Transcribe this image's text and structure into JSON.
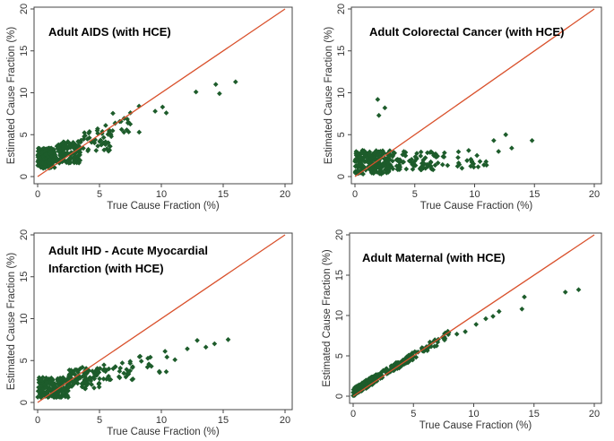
{
  "colors": {
    "point": "#1d5c2b",
    "identity_line": "#d9512c",
    "frame": "#444444"
  },
  "chart_data": [
    {
      "type": "scatter",
      "title_lines": [
        "Adult AIDS (with HCE)"
      ],
      "xlabel": "True Cause Fraction (%)",
      "ylabel": "Estimated Cause Fraction (%)",
      "xlim": [
        0,
        20
      ],
      "ylim": [
        0,
        20
      ],
      "xticks": [
        "0",
        "5",
        "10",
        "15",
        "20"
      ],
      "yticks": [
        "0",
        "5",
        "10",
        "15",
        "20"
      ],
      "reference_line": "y = x",
      "points": {
        "clusters": [
          {
            "x": [
              0,
              1.4
            ],
            "y": [
              1.0,
              3.4
            ],
            "n": 190
          },
          {
            "x": [
              1.4,
              3.5
            ],
            "y": [
              1.6,
              4.2
            ],
            "n": 120
          },
          {
            "x": [
              3.5,
              6.0
            ],
            "y": [
              3.0,
              5.8
            ],
            "n": 45
          },
          {
            "x": [
              6.0,
              8.5
            ],
            "y": [
              4.8,
              7.8
            ],
            "n": 16
          }
        ],
        "extra": [
          [
            9.5,
            7.8
          ],
          [
            10.1,
            8.3
          ],
          [
            10.4,
            7.6
          ],
          [
            12.8,
            10.1
          ],
          [
            14.4,
            11.0
          ],
          [
            14.7,
            9.9
          ],
          [
            16.0,
            11.3
          ],
          [
            8.2,
            8.4
          ],
          [
            7.3,
            6.4
          ],
          [
            5.5,
            6.1
          ]
        ]
      }
    },
    {
      "type": "scatter",
      "title_lines": [
        "Adult Colorectal Cancer (with HCE)"
      ],
      "xlabel": "True Cause Fraction (%)",
      "ylabel": "Estimated Cause Fraction (%)",
      "xlim": [
        0,
        20
      ],
      "ylim": [
        0,
        20
      ],
      "xticks": [
        "0",
        "5",
        "10",
        "15",
        "20"
      ],
      "yticks": [
        "0",
        "5",
        "10",
        "15",
        "20"
      ],
      "reference_line": "y = x",
      "points": {
        "clusters": [
          {
            "x": [
              0,
              3.0
            ],
            "y": [
              0.3,
              3.2
            ],
            "n": 210
          },
          {
            "x": [
              3.0,
              7.0
            ],
            "y": [
              0.8,
              3.0
            ],
            "n": 80
          },
          {
            "x": [
              7.0,
              11.0
            ],
            "y": [
              1.0,
              3.2
            ],
            "n": 25
          }
        ],
        "extra": [
          [
            1.9,
            9.2
          ],
          [
            2.5,
            8.2
          ],
          [
            2.0,
            7.3
          ],
          [
            11.6,
            4.3
          ],
          [
            12.6,
            5.0
          ],
          [
            14.8,
            4.3
          ],
          [
            12.0,
            3.0
          ],
          [
            13.1,
            3.4
          ]
        ]
      }
    },
    {
      "type": "scatter",
      "title_lines": [
        "Adult IHD - Acute Myocardial",
        "Infarction (with HCE)"
      ],
      "xlabel": "True Cause Fraction (%)",
      "ylabel": "Estimated Cause Fraction (%)",
      "xlim": [
        0,
        20
      ],
      "ylim": [
        0,
        20
      ],
      "xticks": [
        "0",
        "5",
        "10",
        "15",
        "20"
      ],
      "yticks": [
        "0",
        "5",
        "10",
        "15",
        "20"
      ],
      "reference_line": "y = x",
      "points": {
        "clusters": [
          {
            "x": [
              0,
              2.5
            ],
            "y": [
              0.6,
              3.0
            ],
            "n": 200
          },
          {
            "x": [
              2.5,
              5.0
            ],
            "y": [
              1.6,
              4.2
            ],
            "n": 90
          },
          {
            "x": [
              5.0,
              8.0
            ],
            "y": [
              2.5,
              5.0
            ],
            "n": 35
          },
          {
            "x": [
              8.0,
              10.5
            ],
            "y": [
              3.5,
              5.8
            ],
            "n": 12
          }
        ],
        "extra": [
          [
            12.1,
            6.4
          ],
          [
            12.9,
            7.4
          ],
          [
            13.6,
            6.6
          ],
          [
            14.3,
            7.0
          ],
          [
            15.4,
            7.5
          ],
          [
            11.1,
            5.1
          ],
          [
            10.3,
            6.1
          ]
        ]
      }
    },
    {
      "type": "scatter",
      "title_lines": [
        "Adult Maternal (with HCE)"
      ],
      "xlabel": "True Cause Fraction (%)",
      "ylabel": "Estimated Cause Fraction (%)",
      "xlim": [
        0,
        20
      ],
      "ylim": [
        0,
        20
      ],
      "xticks": [
        "0",
        "5",
        "10",
        "15",
        "20"
      ],
      "yticks": [
        "0",
        "5",
        "10",
        "15",
        "20"
      ],
      "reference_line": "y = x",
      "points": {
        "slope": 0.9,
        "clusters": [
          {
            "x": [
              0,
              2.0
            ],
            "jitter": 0.5,
            "n": 140
          },
          {
            "x": [
              2.0,
              5.0
            ],
            "jitter": 0.45,
            "n": 110
          },
          {
            "x": [
              5.0,
              8.0
            ],
            "jitter": 0.5,
            "n": 40
          }
        ],
        "extra": [
          [
            9.3,
            8.0
          ],
          [
            10.2,
            8.9
          ],
          [
            11.0,
            9.6
          ],
          [
            11.6,
            9.9
          ],
          [
            12.1,
            10.5
          ],
          [
            14.0,
            10.8
          ],
          [
            14.2,
            12.3
          ],
          [
            17.6,
            12.9
          ],
          [
            18.7,
            13.2
          ],
          [
            8.6,
            7.7
          ]
        ]
      }
    }
  ]
}
